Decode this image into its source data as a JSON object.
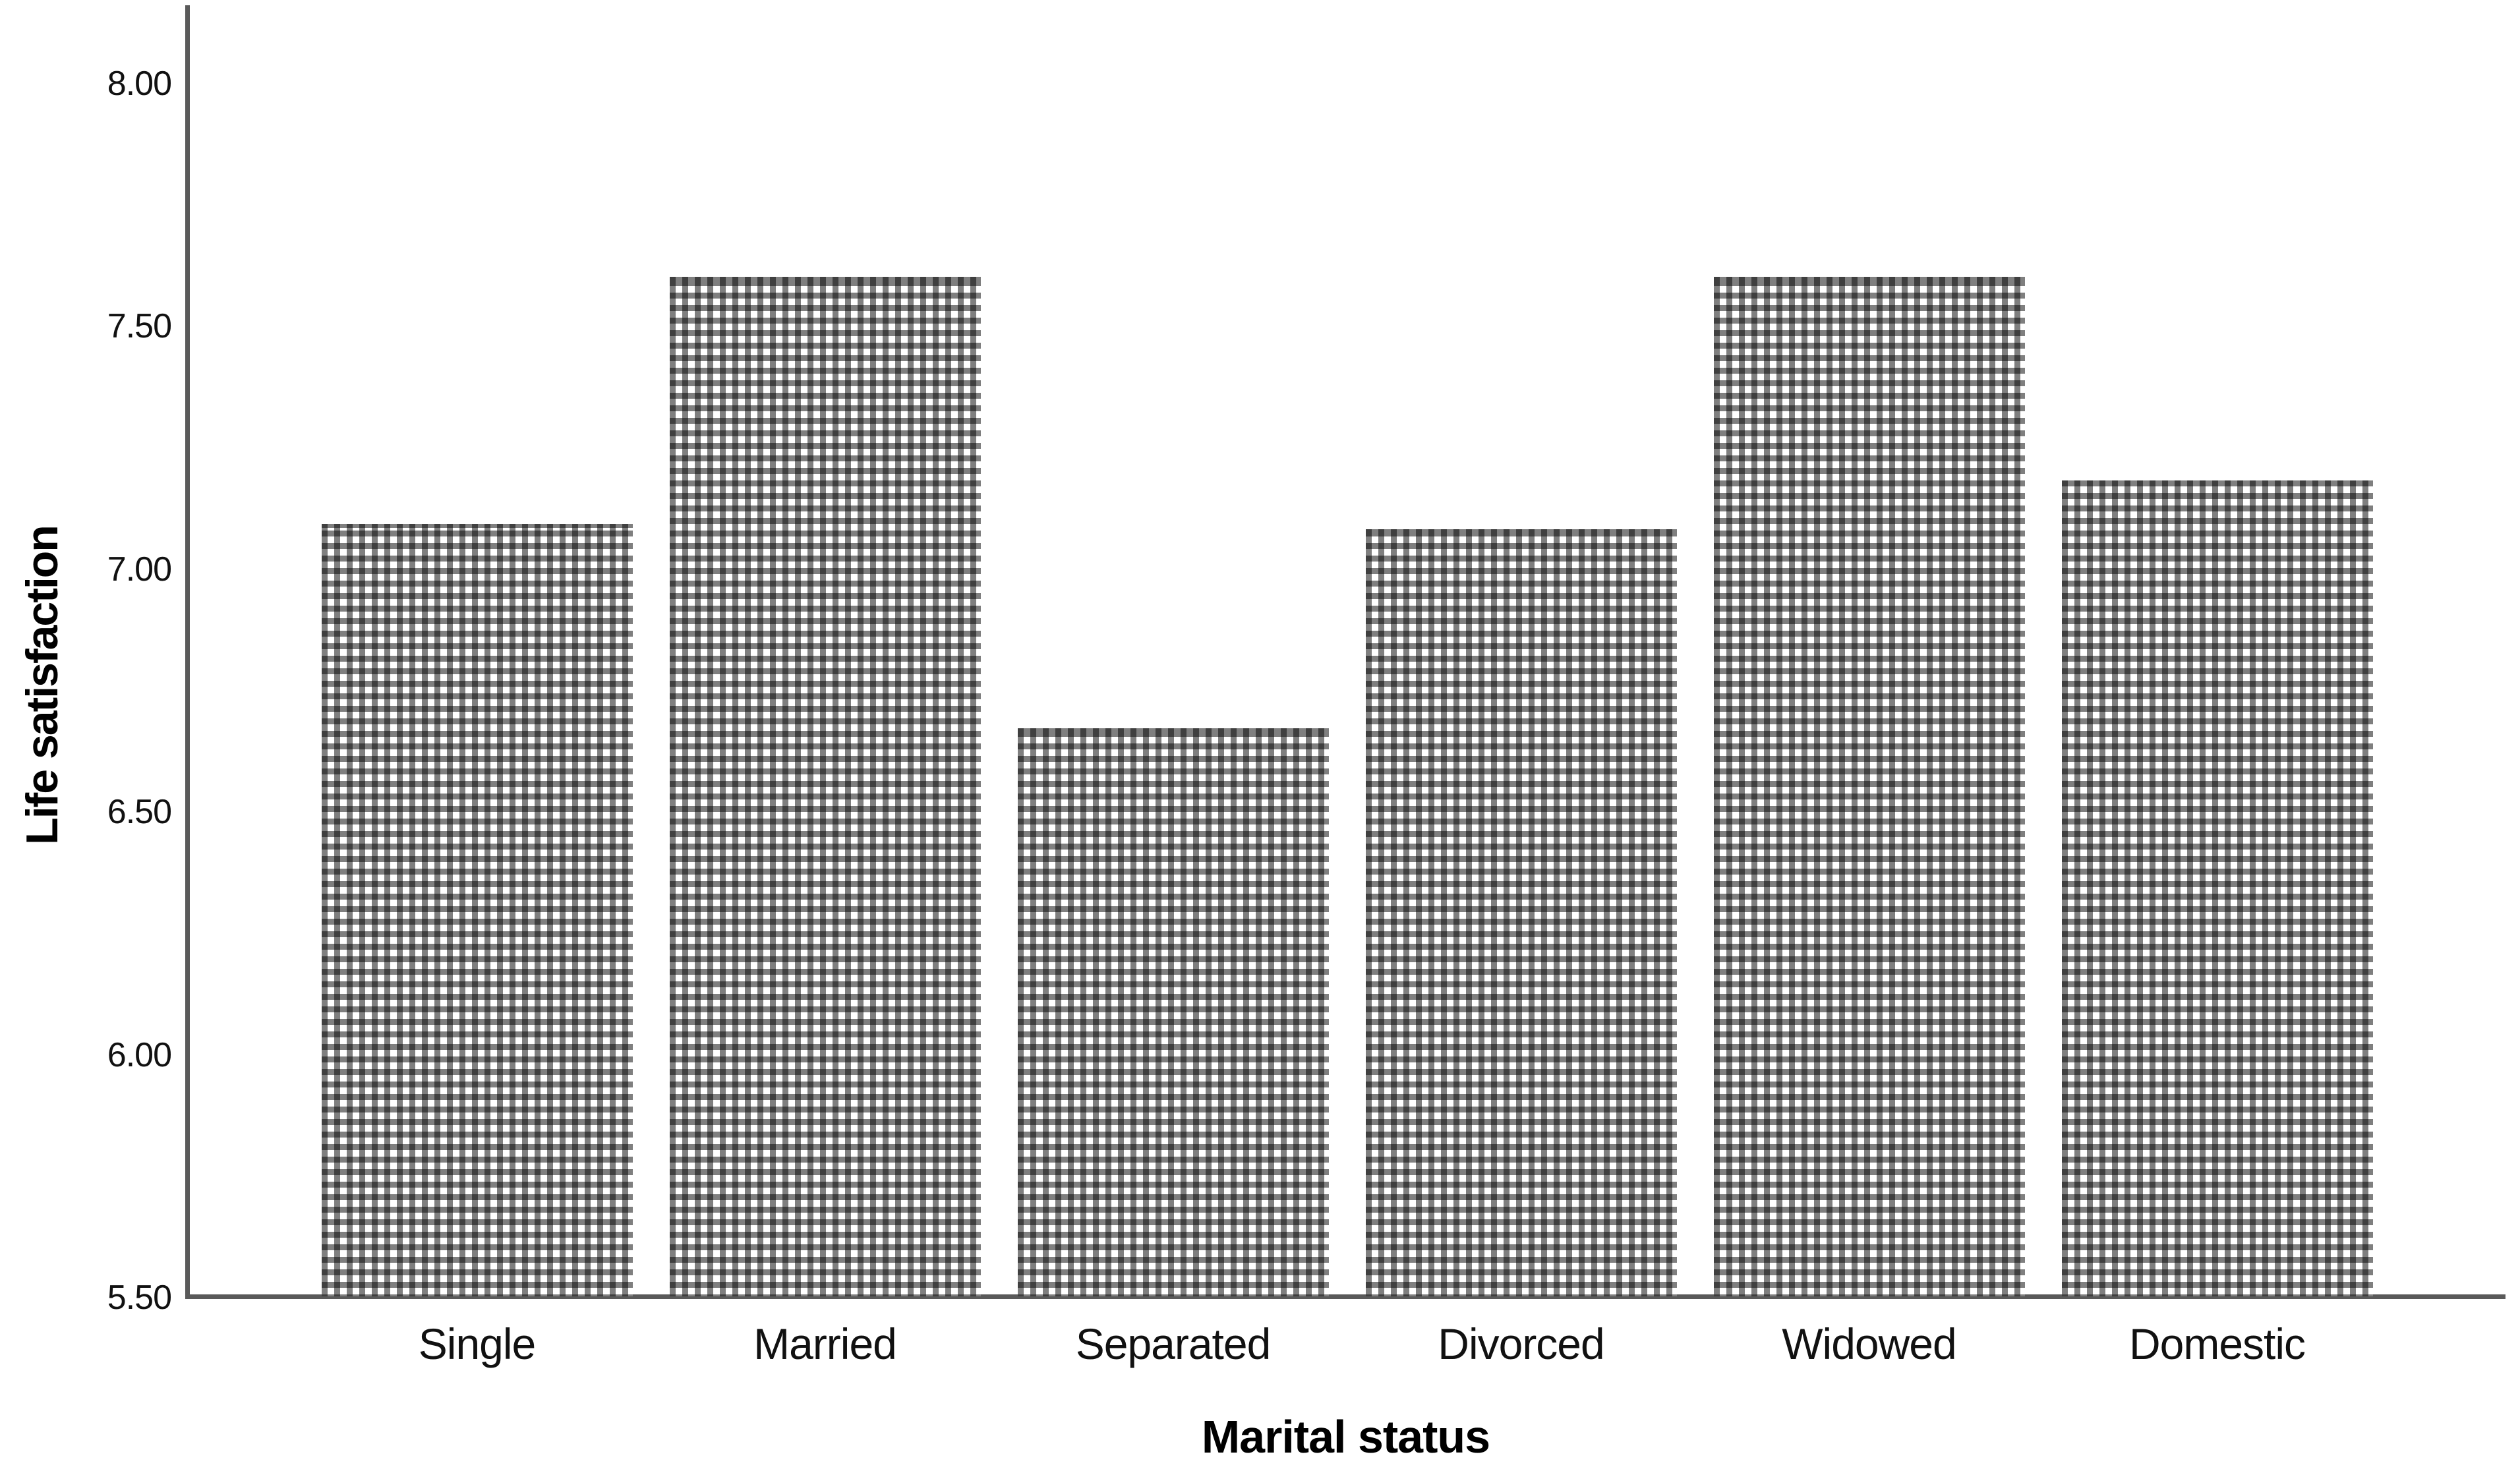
{
  "chart_data": {
    "type": "bar",
    "title": "",
    "categories": [
      "Single",
      "Married",
      "Separated",
      "Divorced",
      "Widowed",
      "Domestic"
    ],
    "values": [
      7.09,
      7.6,
      6.67,
      7.08,
      7.6,
      7.18
    ],
    "xlabel": "Marital status",
    "ylabel": "Life satisfaction",
    "ylim": [
      5.5,
      8.16
    ],
    "ytick_labels": [
      "5.50",
      "6.00",
      "6.50",
      "7.00",
      "7.50",
      "8.00"
    ],
    "ytick_values": [
      5.5,
      6.0,
      6.5,
      7.0,
      7.5,
      8.0
    ],
    "grid": "off",
    "legend": "none",
    "bar_fill_style": "checkered-pattern",
    "bar_pattern_color": "#808080",
    "bar_pattern_intersection_color": "#404040",
    "axis_line_color": "#5a5a5a",
    "text_color": "#000000",
    "background_color": "#ffffff"
  }
}
